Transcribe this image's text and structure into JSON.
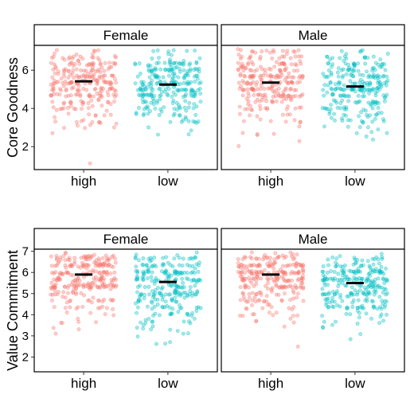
{
  "chart_data": [
    {
      "type": "scatter",
      "subtype": "jittered strip plot with group means, faceted by gender",
      "ylabel": "Core Goodness",
      "categories": [
        "high",
        "low"
      ],
      "facets": [
        "Female",
        "Male"
      ],
      "ylim": [
        0.8,
        7.3
      ],
      "yticks": [
        2,
        4,
        6
      ],
      "colors": {
        "high": "#F8766D",
        "low": "#00BFC4"
      },
      "means": {
        "Female": {
          "high": 5.42,
          "low": 5.25
        },
        "Male": {
          "high": 5.35,
          "low": 5.15
        }
      },
      "point_count_per_group": 260,
      "grid": false
    },
    {
      "type": "scatter",
      "subtype": "jittered strip plot with group means, faceted by gender",
      "ylabel": "Value Commitment",
      "categories": [
        "high",
        "low"
      ],
      "facets": [
        "Female",
        "Male"
      ],
      "ylim": [
        1.3,
        7.1
      ],
      "yticks": [
        2,
        3,
        4,
        5,
        6,
        7
      ],
      "colors": {
        "high": "#F8766D",
        "low": "#00BFC4"
      },
      "means": {
        "Female": {
          "high": 5.9,
          "low": 5.55
        },
        "Male": {
          "high": 5.9,
          "low": 5.5
        }
      },
      "point_count_per_group": 260,
      "grid": false
    }
  ]
}
